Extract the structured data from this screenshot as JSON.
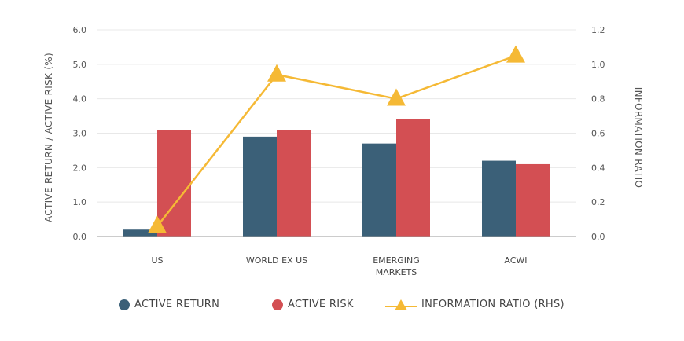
{
  "chart_data": {
    "type": "bar",
    "categories": [
      [
        "US"
      ],
      [
        "WORLD EX US"
      ],
      [
        "EMERGING",
        "MARKETS"
      ],
      [
        "ACWI"
      ]
    ],
    "ylabel": "ACTIVE RETURN / ACTIVE RISK (%)",
    "y2label": "INFORMATION RATIO",
    "ylim": [
      0,
      6
    ],
    "y2lim": [
      0,
      1.2
    ],
    "yticks": [
      "0.0",
      "1.0",
      "2.0",
      "3.0",
      "4.0",
      "5.0",
      "6.0"
    ],
    "y2ticks": [
      "0.0",
      "0.2",
      "0.4",
      "0.6",
      "0.8",
      "1.0",
      "1.2"
    ],
    "grid": true,
    "legend_placement": "bottom",
    "series": [
      {
        "name": "ACTIVE RETURN",
        "kind": "bar",
        "axis": "left",
        "color": "#3b6078",
        "values": [
          0.2,
          2.9,
          2.7,
          2.2
        ]
      },
      {
        "name": "ACTIVE RISK",
        "kind": "bar",
        "axis": "left",
        "color": "#d34f53",
        "values": [
          3.1,
          3.1,
          3.4,
          2.1
        ]
      },
      {
        "name": "INFORMATION RATIO (RHS)",
        "kind": "line",
        "marker": "triangle",
        "axis": "right",
        "color": "#f5b935",
        "values": [
          0.06,
          0.94,
          0.8,
          1.05
        ]
      }
    ]
  }
}
